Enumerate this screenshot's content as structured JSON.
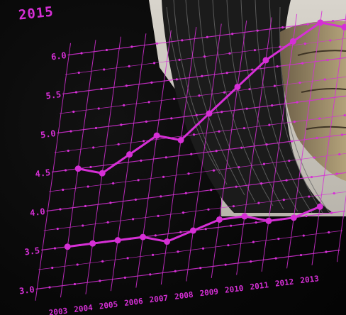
{
  "badge": "2015",
  "chart_data": {
    "type": "line",
    "categories": [
      "2003",
      "2004",
      "2005",
      "2006",
      "2007",
      "2008",
      "2009",
      "2010",
      "2011",
      "2012",
      "2013"
    ],
    "y_ticks": [
      "6.0",
      "5.5",
      "5.0",
      "4.5",
      "4.0",
      "3.5",
      "3.0"
    ],
    "ylim": [
      3.0,
      6.0
    ],
    "series": [
      {
        "values": [
          4.5,
          4.4,
          4.6,
          4.8,
          4.7,
          5.0,
          5.3,
          5.6,
          5.8,
          6.0,
          5.9
        ]
      },
      {
        "values": [
          3.5,
          3.5,
          3.5,
          3.5,
          3.4,
          3.5,
          3.6,
          3.6,
          3.5,
          3.5,
          3.6
        ]
      }
    ],
    "title": "",
    "xlabel": "",
    "ylabel": "",
    "grid": true,
    "color": "#d62fd6"
  }
}
